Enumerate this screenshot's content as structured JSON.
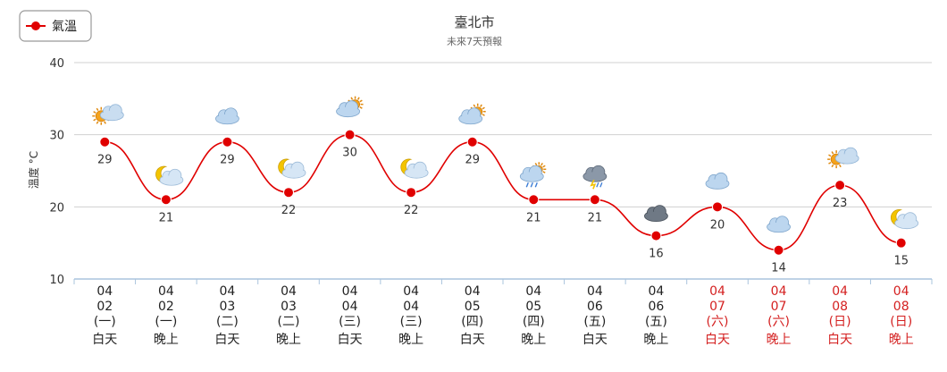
{
  "chart_data": {
    "type": "line",
    "title": "臺北市",
    "subtitle": "未來7天預報",
    "ylabel": "溫度 °C",
    "ylim": [
      10,
      40
    ],
    "yticks": [
      10,
      20,
      30,
      40
    ],
    "grid": true,
    "legend_position": "top-left",
    "series": [
      {
        "name": "氣溫",
        "color": "#e00000",
        "values": [
          29,
          21,
          29,
          22,
          30,
          22,
          29,
          21,
          21,
          16,
          20,
          14,
          23,
          15
        ]
      }
    ],
    "categories": [
      {
        "month": "04",
        "day": "02",
        "weekday": "(一)",
        "period": "白天",
        "weekend": false
      },
      {
        "month": "04",
        "day": "02",
        "weekday": "(一)",
        "period": "晚上",
        "weekend": false
      },
      {
        "month": "04",
        "day": "03",
        "weekday": "(二)",
        "period": "白天",
        "weekend": false
      },
      {
        "month": "04",
        "day": "03",
        "weekday": "(二)",
        "period": "晚上",
        "weekend": false
      },
      {
        "month": "04",
        "day": "04",
        "weekday": "(三)",
        "period": "白天",
        "weekend": false
      },
      {
        "month": "04",
        "day": "04",
        "weekday": "(三)",
        "period": "晚上",
        "weekend": false
      },
      {
        "month": "04",
        "day": "05",
        "weekday": "(四)",
        "period": "白天",
        "weekend": false
      },
      {
        "month": "04",
        "day": "05",
        "weekday": "(四)",
        "period": "晚上",
        "weekend": false
      },
      {
        "month": "04",
        "day": "06",
        "weekday": "(五)",
        "period": "白天",
        "weekend": false
      },
      {
        "month": "04",
        "day": "06",
        "weekday": "(五)",
        "period": "晚上",
        "weekend": false
      },
      {
        "month": "04",
        "day": "07",
        "weekday": "(六)",
        "period": "白天",
        "weekend": true
      },
      {
        "month": "04",
        "day": "07",
        "weekday": "(六)",
        "period": "晚上",
        "weekend": true
      },
      {
        "month": "04",
        "day": "08",
        "weekday": "(日)",
        "period": "白天",
        "weekend": true
      },
      {
        "month": "04",
        "day": "08",
        "weekday": "(日)",
        "period": "晚上",
        "weekend": true
      }
    ],
    "weather_icons": [
      "sun-cloud-icon",
      "moon-cloud-icon",
      "cloud-icon",
      "moon-cloud-icon",
      "cloud-sun-icon",
      "moon-cloud-icon",
      "cloud-sun-icon",
      "rain-cloud-icon",
      "thunder-cloud-icon",
      "dark-cloud-icon",
      "cloud-icon",
      "cloud-icon",
      "sun-cloud-icon",
      "moon-cloud-icon"
    ]
  }
}
